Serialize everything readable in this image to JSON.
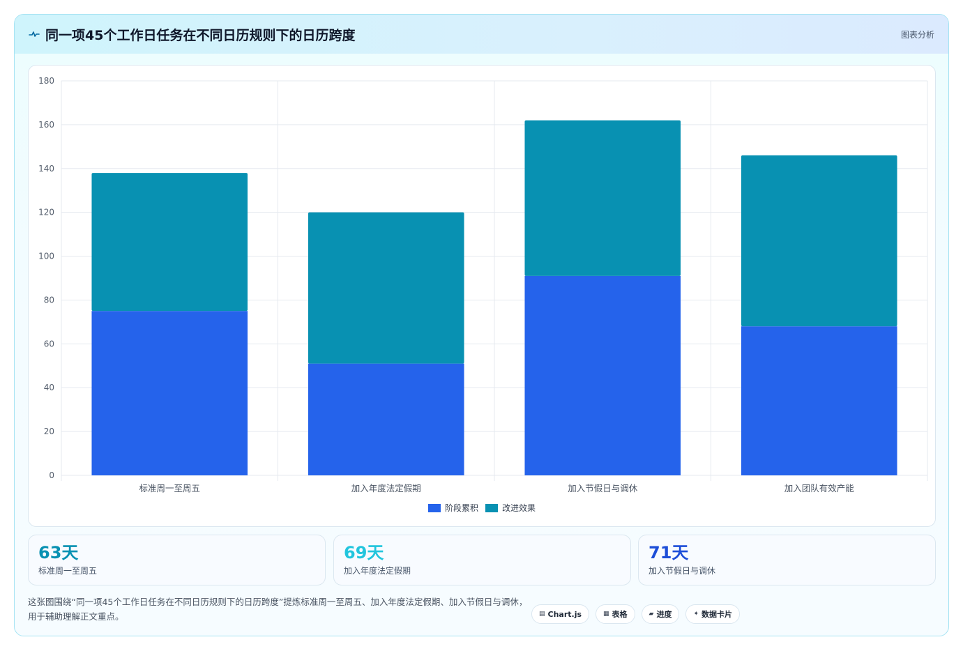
{
  "header": {
    "title": "同一项45个工作日任务在不同日历规则下的日历跨度",
    "tag": "图表分析"
  },
  "chart_data": {
    "type": "bar",
    "stacked": true,
    "categories": [
      "标准周一至周五",
      "加入年度法定假期",
      "加入节假日与调休",
      "加入团队有效产能"
    ],
    "series": [
      {
        "name": "阶段累积",
        "values": [
          75,
          51,
          91,
          68
        ],
        "color": "#2563eb"
      },
      {
        "name": "改进效果",
        "values": [
          63,
          69,
          71,
          78
        ],
        "color": "#0891b2"
      }
    ],
    "ylim": [
      0,
      180
    ],
    "yticks": [
      0,
      20,
      40,
      60,
      80,
      100,
      120,
      140,
      160,
      180
    ],
    "grid": true,
    "legend_position": "bottom"
  },
  "stats": [
    {
      "value": "63天",
      "label": "标准周一至周五",
      "color": "#0891b2"
    },
    {
      "value": "69天",
      "label": "加入年度法定假期",
      "color": "#22c5dd"
    },
    {
      "value": "71天",
      "label": "加入节假日与调休",
      "color": "#1d4ed8"
    }
  ],
  "footnote": "这张图围绕“同一项45个工作日任务在不同日历规则下的日历跨度”提炼标准周一至周五、加入年度法定假期、加入节假日与调休，用于辅助理解正文重点。",
  "chips": [
    {
      "icon": "▤",
      "label": "Chart.js"
    },
    {
      "icon": "▦",
      "label": "表格"
    },
    {
      "icon": "▰",
      "label": "进度"
    },
    {
      "icon": "✦",
      "label": "数据卡片"
    }
  ]
}
